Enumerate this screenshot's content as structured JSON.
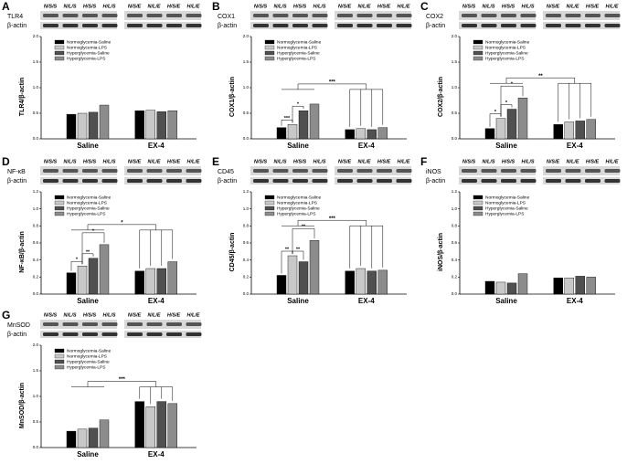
{
  "lanes": [
    "N/S/S",
    "N/L/S",
    "H/S/S",
    "H/L/S",
    "N/S/E",
    "N/L/E",
    "H/S/E",
    "H/L/E"
  ],
  "loading_control": "β-actin",
  "chart_data": [
    {
      "type": "bar",
      "panel": "A",
      "protein": "TLR4",
      "y_label": "TLR4/β-actin",
      "categories": [
        "Saline",
        "EX-4"
      ],
      "ylim": [
        0,
        2
      ],
      "yticks": [
        {
          "value": 0,
          "label": "0.0"
        },
        {
          "value": 0.5,
          "label": "0.5"
        },
        {
          "value": 1,
          "label": "1.0"
        },
        {
          "value": 1.5,
          "label": "1.5"
        },
        {
          "value": 2,
          "label": "2.0"
        }
      ],
      "annotations": [],
      "series": [
        {
          "name": "Normoglycemia-Saline",
          "color": "#000000",
          "values": [
            0.48,
            0.55
          ]
        },
        {
          "name": "Normoglycemia-LPS",
          "color": "#c8c8c8",
          "values": [
            0.5,
            0.56
          ]
        },
        {
          "name": "Hyperglycemia-Saline",
          "color": "#505050",
          "values": [
            0.52,
            0.53
          ]
        },
        {
          "name": "Hyperglycemia-LPS",
          "color": "#8c8c8c",
          "values": [
            0.66,
            0.55
          ]
        }
      ]
    },
    {
      "type": "bar",
      "panel": "B",
      "protein": "COX1",
      "y_label": "COX1/β-actin",
      "categories": [
        "Saline",
        "EX-4"
      ],
      "ylim": [
        0,
        2
      ],
      "yticks": [
        {
          "value": 0,
          "label": "0.0"
        },
        {
          "value": 0.5,
          "label": "0.5"
        },
        {
          "value": 1,
          "label": "1.0"
        },
        {
          "value": 1.5,
          "label": "1.5"
        },
        {
          "value": 2,
          "label": "2.0"
        }
      ],
      "annotations": [
        "***",
        "***",
        "*"
      ],
      "series": [
        {
          "name": "Normoglycemia-Saline",
          "color": "#000000",
          "values": [
            0.22,
            0.18
          ]
        },
        {
          "name": "Normoglycemia-LPS",
          "color": "#c8c8c8",
          "values": [
            0.28,
            0.2
          ]
        },
        {
          "name": "Hyperglycemia-Saline",
          "color": "#505050",
          "values": [
            0.55,
            0.18
          ]
        },
        {
          "name": "Hyperglycemia-LPS",
          "color": "#8c8c8c",
          "values": [
            0.68,
            0.22
          ]
        }
      ]
    },
    {
      "type": "bar",
      "panel": "C",
      "protein": "COX2",
      "y_label": "COX2/β-actin",
      "categories": [
        "Saline",
        "EX-4"
      ],
      "ylim": [
        0,
        2
      ],
      "yticks": [
        {
          "value": 0,
          "label": "0.0"
        },
        {
          "value": 0.5,
          "label": "0.5"
        },
        {
          "value": 1,
          "label": "1.0"
        },
        {
          "value": 1.5,
          "label": "1.5"
        },
        {
          "value": 2,
          "label": "2.0"
        }
      ],
      "annotations": [
        "**",
        "*",
        "*",
        "*"
      ],
      "series": [
        {
          "name": "Normoglycemia-Saline",
          "color": "#000000",
          "values": [
            0.2,
            0.28
          ]
        },
        {
          "name": "Normoglycemia-LPS",
          "color": "#c8c8c8",
          "values": [
            0.4,
            0.33
          ]
        },
        {
          "name": "Hyperglycemia-Saline",
          "color": "#505050",
          "values": [
            0.58,
            0.35
          ]
        },
        {
          "name": "Hyperglycemia-LPS",
          "color": "#8c8c8c",
          "values": [
            0.8,
            0.38
          ]
        }
      ]
    },
    {
      "type": "bar",
      "panel": "D",
      "protein": "NF-κB",
      "y_label": "NF-κB/β-actin",
      "categories": [
        "Saline",
        "EX-4"
      ],
      "ylim": [
        0,
        1.2
      ],
      "yticks": [
        {
          "value": 0,
          "label": "0.0"
        },
        {
          "value": 0.2,
          "label": "0.2"
        },
        {
          "value": 0.4,
          "label": "0.4"
        },
        {
          "value": 0.6,
          "label": "0.6"
        },
        {
          "value": 0.8,
          "label": "0.8"
        },
        {
          "value": 1,
          "label": "1.0"
        },
        {
          "value": 1.2,
          "label": "1.2"
        }
      ],
      "annotations": [
        "*",
        "*",
        "**",
        "*"
      ],
      "series": [
        {
          "name": "Normoglycemia-Saline",
          "color": "#000000",
          "values": [
            0.25,
            0.27
          ]
        },
        {
          "name": "Normoglycemia-LPS",
          "color": "#c8c8c8",
          "values": [
            0.33,
            0.3
          ]
        },
        {
          "name": "Hyperglycemia-Saline",
          "color": "#505050",
          "values": [
            0.42,
            0.3
          ]
        },
        {
          "name": "Hyperglycemia-LPS",
          "color": "#8c8c8c",
          "values": [
            0.58,
            0.38
          ]
        }
      ]
    },
    {
      "type": "bar",
      "panel": "E",
      "protein": "CD45",
      "y_label": "CD45/β-actin",
      "categories": [
        "Saline",
        "EX-4"
      ],
      "ylim": [
        0,
        1.2
      ],
      "yticks": [
        {
          "value": 0,
          "label": "0.0"
        },
        {
          "value": 0.2,
          "label": "0.2"
        },
        {
          "value": 0.4,
          "label": "0.4"
        },
        {
          "value": 0.6,
          "label": "0.6"
        },
        {
          "value": 0.8,
          "label": "0.8"
        },
        {
          "value": 1,
          "label": "1.0"
        },
        {
          "value": 1.2,
          "label": "1.2"
        }
      ],
      "annotations": [
        "***",
        "**",
        "**",
        "**"
      ],
      "series": [
        {
          "name": "Normoglycemia-Saline",
          "color": "#000000",
          "values": [
            0.22,
            0.27
          ]
        },
        {
          "name": "Normoglycemia-LPS",
          "color": "#c8c8c8",
          "values": [
            0.45,
            0.3
          ]
        },
        {
          "name": "Hyperglycemia-Saline",
          "color": "#505050",
          "values": [
            0.38,
            0.27
          ]
        },
        {
          "name": "Hyperglycemia-LPS",
          "color": "#8c8c8c",
          "values": [
            0.63,
            0.28
          ]
        }
      ]
    },
    {
      "type": "bar",
      "panel": "F",
      "protein": "iNOS",
      "y_label": "iNOS/β-actin",
      "categories": [
        "Saline",
        "EX-4"
      ],
      "ylim": [
        0,
        1.2
      ],
      "yticks": [
        {
          "value": 0,
          "label": "0.0"
        },
        {
          "value": 0.2,
          "label": "0.2"
        },
        {
          "value": 0.4,
          "label": "0.4"
        },
        {
          "value": 0.6,
          "label": "0.6"
        },
        {
          "value": 0.8,
          "label": "0.8"
        },
        {
          "value": 1,
          "label": "1.0"
        },
        {
          "value": 1.2,
          "label": "1.2"
        }
      ],
      "annotations": [],
      "series": [
        {
          "name": "Normoglycemia-Saline",
          "color": "#000000",
          "values": [
            0.15,
            0.19
          ]
        },
        {
          "name": "Normoglycemia-LPS",
          "color": "#c8c8c8",
          "values": [
            0.14,
            0.19
          ]
        },
        {
          "name": "Hyperglycemia-Saline",
          "color": "#505050",
          "values": [
            0.13,
            0.21
          ]
        },
        {
          "name": "Hyperglycemia-LPS",
          "color": "#8c8c8c",
          "values": [
            0.24,
            0.2
          ]
        }
      ]
    },
    {
      "type": "bar",
      "panel": "G",
      "protein": "MnSOD",
      "y_label": "MnSOD/β-actin",
      "categories": [
        "Saline",
        "EX-4"
      ],
      "ylim": [
        0,
        2
      ],
      "yticks": [
        {
          "value": 0,
          "label": "0.0"
        },
        {
          "value": 0.5,
          "label": "0.5"
        },
        {
          "value": 1,
          "label": "1.0"
        },
        {
          "value": 1.5,
          "label": "1.5"
        },
        {
          "value": 2,
          "label": "2.0"
        }
      ],
      "annotations": [
        "***"
      ],
      "series": [
        {
          "name": "Normoglycemia-Saline",
          "color": "#000000",
          "values": [
            0.32,
            0.9
          ]
        },
        {
          "name": "Normoglycemia-LPS",
          "color": "#c8c8c8",
          "values": [
            0.36,
            0.8
          ]
        },
        {
          "name": "Hyperglycemia-Saline",
          "color": "#505050",
          "values": [
            0.38,
            0.9
          ]
        },
        {
          "name": "Hyperglycemia-LPS",
          "color": "#8c8c8c",
          "values": [
            0.54,
            0.86
          ]
        }
      ]
    }
  ]
}
